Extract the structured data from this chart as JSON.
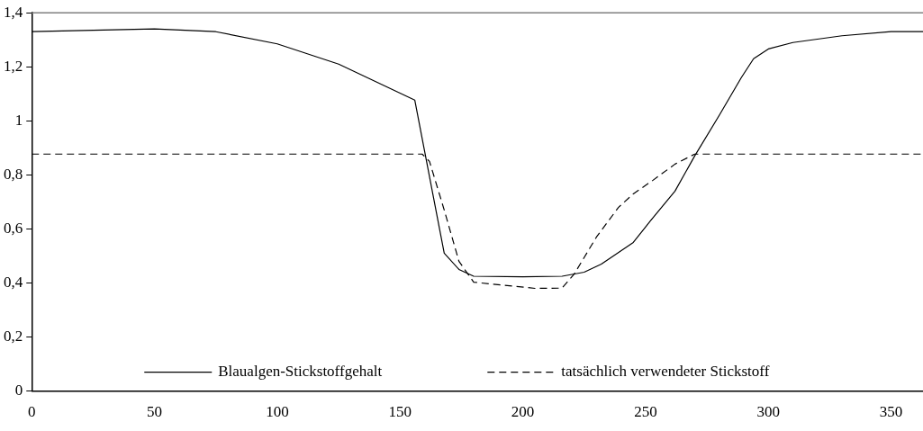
{
  "chart_data": {
    "type": "line",
    "xlim": [
      0,
      363
    ],
    "xticks": [
      0,
      50,
      100,
      150,
      200,
      250,
      300,
      350
    ],
    "ylim": [
      0,
      1.4
    ],
    "yticks": [
      0,
      {
        "value": 0.2,
        "label": "0,2"
      },
      {
        "value": 0.4,
        "label": "0,4"
      },
      {
        "value": 0.6,
        "label": "0,6"
      },
      {
        "value": 0.8,
        "label": "0,8"
      },
      1,
      {
        "value": 1.2,
        "label": "1,2"
      },
      {
        "value": 1.4,
        "label": "1,4"
      }
    ],
    "grid": false,
    "legend": "bottom",
    "marker": "none",
    "series": [
      {
        "name": "Blaualgen-Stickstoffgehalt",
        "color": "#000000",
        "line_style": "solid",
        "x": [
          0,
          25,
          50,
          75,
          100,
          125,
          156,
          168,
          174,
          180,
          200,
          216,
          225,
          232,
          245,
          252,
          262,
          270,
          280,
          289,
          294,
          300,
          310,
          330,
          350,
          363
        ],
        "values": [
          1.33,
          1.335,
          1.34,
          1.33,
          1.285,
          1.21,
          1.077,
          0.51,
          0.45,
          0.425,
          0.423,
          0.425,
          0.44,
          0.47,
          0.55,
          0.63,
          0.74,
          0.87,
          1.02,
          1.16,
          1.23,
          1.266,
          1.29,
          1.315,
          1.33,
          1.33
        ]
      },
      {
        "name": "tatsächlich verwendeter Stickstoff",
        "color": "#000000",
        "line_style": "dashed",
        "x": [
          0,
          159,
          162,
          168,
          174,
          180,
          205,
          216,
          221,
          230,
          239,
          245,
          253,
          262,
          270,
          300,
          363
        ],
        "values": [
          0.877,
          0.877,
          0.85,
          0.67,
          0.48,
          0.403,
          0.38,
          0.381,
          0.434,
          0.57,
          0.68,
          0.73,
          0.78,
          0.84,
          0.877,
          0.877,
          0.877
        ]
      }
    ]
  }
}
